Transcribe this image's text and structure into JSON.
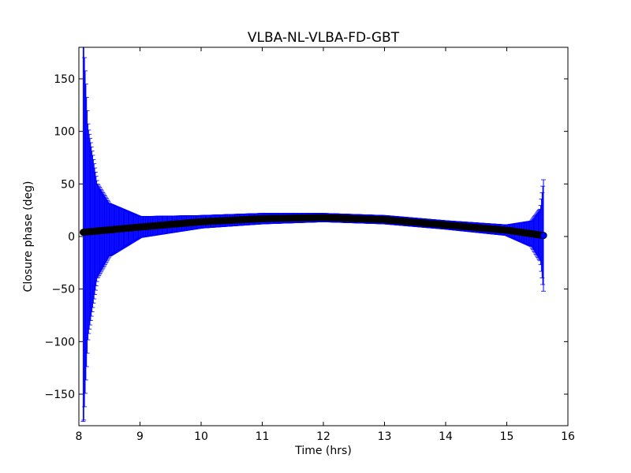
{
  "chart_data": {
    "type": "scatter",
    "title": "VLBA-NL-VLBA-FD-GBT",
    "xlabel": "Time (hrs)",
    "ylabel": "Closure phase (deg)",
    "xlim": [
      8,
      16
    ],
    "ylim": [
      -180,
      180
    ],
    "xticks": [
      8,
      9,
      10,
      11,
      12,
      13,
      14,
      15,
      16
    ],
    "yticks": [
      -150,
      -100,
      -50,
      0,
      50,
      100,
      150
    ],
    "xtick_labels": [
      "8",
      "9",
      "10",
      "11",
      "12",
      "13",
      "14",
      "15",
      "16"
    ],
    "ytick_labels": [
      "−150",
      "−100",
      "−50",
      "0",
      "50",
      "100",
      "150"
    ],
    "grid": false,
    "legend": "none",
    "series": [
      {
        "x_range": [
          8.07,
          15.6
        ],
        "point_count": 680,
        "marker": "circle",
        "marker_color": "#000000",
        "errorbar_color": "#0000ff",
        "values_at": [
          {
            "x": 8.07,
            "y": 4
          },
          {
            "x": 9.0,
            "y": 9
          },
          {
            "x": 10.0,
            "y": 14
          },
          {
            "x": 11.0,
            "y": 17
          },
          {
            "x": 12.0,
            "y": 18
          },
          {
            "x": 13.0,
            "y": 16
          },
          {
            "x": 14.0,
            "y": 11
          },
          {
            "x": 15.0,
            "y": 6
          },
          {
            "x": 15.6,
            "y": 1
          }
        ],
        "error_at": [
          {
            "x": 8.08,
            "err": 180
          },
          {
            "x": 8.15,
            "err": 100
          },
          {
            "x": 8.3,
            "err": 45
          },
          {
            "x": 8.5,
            "err": 25
          },
          {
            "x": 9.0,
            "err": 10
          },
          {
            "x": 10.0,
            "err": 6
          },
          {
            "x": 12.0,
            "err": 4
          },
          {
            "x": 14.0,
            "err": 4
          },
          {
            "x": 15.0,
            "err": 5
          },
          {
            "x": 15.4,
            "err": 12
          },
          {
            "x": 15.55,
            "err": 25
          },
          {
            "x": 15.6,
            "err": 53
          }
        ]
      }
    ]
  }
}
